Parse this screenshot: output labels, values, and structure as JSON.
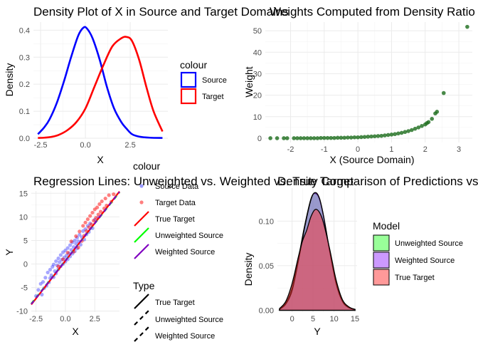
{
  "chart_data": [
    {
      "type": "line",
      "title": "Density Plot of X in Source and Target Domains",
      "xlabel": "X",
      "ylabel": "Density",
      "xlim": [
        -2.9,
        4.6
      ],
      "ylim": [
        0,
        0.43
      ],
      "xticks": [
        -2.5,
        0.0,
        2.5
      ],
      "xtick_labels": [
        "-2.5",
        "0.0",
        "2.5"
      ],
      "yticks": [
        0.0,
        0.1,
        0.2,
        0.3,
        0.4
      ],
      "ytick_labels": [
        "0.0",
        "0.1",
        "0.2",
        "0.3",
        "0.4"
      ],
      "grid": true,
      "legend": {
        "title": "colour",
        "position": "right",
        "entries": [
          "Source",
          "Target"
        ]
      },
      "series": [
        {
          "name": "Source",
          "color": "#0000ff",
          "x": [
            -2.65,
            -2.3,
            -2.0,
            -1.6,
            -1.2,
            -0.8,
            -0.4,
            -0.1,
            0.1,
            0.4,
            0.8,
            1.2,
            1.6,
            2.0,
            2.3,
            2.6,
            3.0,
            3.6,
            4.3
          ],
          "y": [
            0.015,
            0.04,
            0.07,
            0.13,
            0.21,
            0.3,
            0.38,
            0.41,
            0.405,
            0.37,
            0.29,
            0.19,
            0.11,
            0.06,
            0.035,
            0.015,
            0.006,
            0.002,
            0.001
          ]
        },
        {
          "name": "Target",
          "color": "#ff0000",
          "x": [
            -2.65,
            -2.3,
            -1.9,
            -1.5,
            -1.0,
            -0.5,
            0.0,
            0.5,
            1.0,
            1.5,
            2.0,
            2.3,
            2.6,
            3.0,
            3.4,
            3.8,
            4.3
          ],
          "y": [
            0.001,
            0.002,
            0.005,
            0.012,
            0.03,
            0.06,
            0.11,
            0.19,
            0.27,
            0.34,
            0.37,
            0.375,
            0.36,
            0.29,
            0.19,
            0.1,
            0.025
          ]
        }
      ]
    },
    {
      "type": "scatter",
      "title": "Weights Computed from Density Ratio",
      "xlabel": "X (Source Domain)",
      "ylabel": "Weight",
      "xlim": [
        -2.75,
        3.4
      ],
      "ylim": [
        -2,
        54
      ],
      "xticks": [
        -2,
        -1,
        0,
        1,
        2,
        3
      ],
      "xtick_labels": [
        "-2",
        "-1",
        "0",
        "1",
        "2",
        "3"
      ],
      "yticks": [
        0,
        10,
        20,
        30,
        40,
        50
      ],
      "ytick_labels": [
        "0",
        "10",
        "20",
        "30",
        "40",
        "50"
      ],
      "grid": true,
      "point_color": "#1a6b1a",
      "points": [
        [
          -2.6,
          0.0
        ],
        [
          -2.4,
          0.0
        ],
        [
          -2.2,
          0.0
        ],
        [
          -2.1,
          0.0
        ],
        [
          -1.9,
          0.0
        ],
        [
          -1.8,
          0.0
        ],
        [
          -1.7,
          0.0
        ],
        [
          -1.6,
          0.0
        ],
        [
          -1.5,
          0.0
        ],
        [
          -1.4,
          0.0
        ],
        [
          -1.3,
          0.0
        ],
        [
          -1.2,
          0.0
        ],
        [
          -1.1,
          0.1
        ],
        [
          -1.0,
          0.1
        ],
        [
          -0.9,
          0.1
        ],
        [
          -0.8,
          0.1
        ],
        [
          -0.7,
          0.1
        ],
        [
          -0.6,
          0.2
        ],
        [
          -0.5,
          0.2
        ],
        [
          -0.4,
          0.2
        ],
        [
          -0.3,
          0.3
        ],
        [
          -0.2,
          0.3
        ],
        [
          -0.1,
          0.4
        ],
        [
          0.0,
          0.4
        ],
        [
          0.1,
          0.5
        ],
        [
          0.2,
          0.6
        ],
        [
          0.3,
          0.7
        ],
        [
          0.4,
          0.8
        ],
        [
          0.5,
          0.9
        ],
        [
          0.6,
          1.0
        ],
        [
          0.7,
          1.1
        ],
        [
          0.8,
          1.3
        ],
        [
          0.9,
          1.5
        ],
        [
          1.0,
          1.7
        ],
        [
          1.1,
          1.9
        ],
        [
          1.2,
          2.2
        ],
        [
          1.3,
          2.5
        ],
        [
          1.4,
          2.9
        ],
        [
          1.5,
          3.3
        ],
        [
          1.6,
          3.8
        ],
        [
          1.7,
          4.4
        ],
        [
          1.8,
          5.0
        ],
        [
          1.9,
          5.7
        ],
        [
          2.0,
          6.4
        ],
        [
          2.05,
          7.0
        ],
        [
          2.1,
          7.5
        ],
        [
          2.2,
          9.0
        ],
        [
          2.3,
          11.5
        ],
        [
          2.35,
          12.3
        ],
        [
          2.55,
          21.0
        ],
        [
          3.25,
          51.8
        ]
      ]
    },
    {
      "type": "scatter",
      "title": "Regression Lines: Unweighted vs. Weighted vs. True Target",
      "xlabel": "X",
      "ylabel": "Y",
      "xlim": [
        -2.9,
        4.6
      ],
      "ylim": [
        -10.2,
        15.5
      ],
      "xticks": [
        -2.5,
        0.0,
        2.5
      ],
      "xtick_labels": [
        "-2.5",
        "0.0",
        "2.5"
      ],
      "yticks": [
        -10,
        -5,
        0,
        5,
        10,
        15
      ],
      "ytick_labels": [
        "-10",
        "-5",
        "0",
        "5",
        "10",
        "15"
      ],
      "grid": true,
      "legend_colour": {
        "title": "colour",
        "entries": [
          {
            "label": "Source Data",
            "kind": "point",
            "color": "#0000ff"
          },
          {
            "label": "Target Data",
            "kind": "point",
            "color": "#ff0000"
          },
          {
            "label": "True Target",
            "kind": "line",
            "color": "#ff0000"
          },
          {
            "label": "Unweighted Source",
            "kind": "line",
            "color": "#00ff00"
          },
          {
            "label": "Weighted Source",
            "kind": "line",
            "color": "#8000c0"
          }
        ]
      },
      "legend_type": {
        "title": "Type",
        "entries": [
          {
            "label": "True Target",
            "dash": "solid"
          },
          {
            "label": "Unweighted Source",
            "dash": "dashed"
          },
          {
            "label": "Weighted Source",
            "dash": "dashed"
          }
        ]
      },
      "source_points": [
        [
          -2.5,
          -6.8
        ],
        [
          -2.3,
          -5.5
        ],
        [
          -2.1,
          -4.2
        ],
        [
          -2.0,
          -6.5
        ],
        [
          -1.9,
          -3.8
        ],
        [
          -1.8,
          -5.1
        ],
        [
          -1.7,
          -2.9
        ],
        [
          -1.6,
          -4.6
        ],
        [
          -1.5,
          -1.8
        ],
        [
          -1.4,
          -3.9
        ],
        [
          -1.3,
          -1.2
        ],
        [
          -1.3,
          -3.0
        ],
        [
          -1.2,
          -2.4
        ],
        [
          -1.1,
          -0.6
        ],
        [
          -1.0,
          -2.8
        ],
        [
          -1.0,
          -0.1
        ],
        [
          -0.9,
          -1.5
        ],
        [
          -0.8,
          0.6
        ],
        [
          -0.8,
          -2.0
        ],
        [
          -0.7,
          -0.3
        ],
        [
          -0.6,
          1.2
        ],
        [
          -0.6,
          -1.1
        ],
        [
          -0.5,
          0.4
        ],
        [
          -0.4,
          1.9
        ],
        [
          -0.4,
          -0.5
        ],
        [
          -0.3,
          0.9
        ],
        [
          -0.2,
          2.5
        ],
        [
          -0.2,
          0.0
        ],
        [
          -0.1,
          1.4
        ],
        [
          0.0,
          2.9
        ],
        [
          0.0,
          0.5
        ],
        [
          0.1,
          1.8
        ],
        [
          0.2,
          3.4
        ],
        [
          0.2,
          1.0
        ],
        [
          0.3,
          2.3
        ],
        [
          0.4,
          4.0
        ],
        [
          0.4,
          1.6
        ],
        [
          0.5,
          3.0
        ],
        [
          0.6,
          4.6
        ],
        [
          0.6,
          2.2
        ],
        [
          0.7,
          3.6
        ],
        [
          0.8,
          5.0
        ],
        [
          0.8,
          2.7
        ],
        [
          0.9,
          4.3
        ],
        [
          1.0,
          5.6
        ],
        [
          1.0,
          3.3
        ],
        [
          1.1,
          4.8
        ],
        [
          1.2,
          6.2
        ],
        [
          1.3,
          4.1
        ],
        [
          1.4,
          5.7
        ],
        [
          1.5,
          7.0
        ],
        [
          1.6,
          5.2
        ],
        [
          1.7,
          7.4
        ],
        [
          1.8,
          6.3
        ],
        [
          1.9,
          8.1
        ],
        [
          2.0,
          6.8
        ],
        [
          2.1,
          8.6
        ],
        [
          2.3,
          7.6
        ],
        [
          2.5,
          9.4
        ],
        [
          2.8,
          9.9
        ]
      ],
      "target_points": [
        [
          -0.6,
          -0.5
        ],
        [
          -0.2,
          1.0
        ],
        [
          0.2,
          2.4
        ],
        [
          0.5,
          4.8
        ],
        [
          0.7,
          2.6
        ],
        [
          0.9,
          5.9
        ],
        [
          1.1,
          3.5
        ],
        [
          1.2,
          6.9
        ],
        [
          1.4,
          4.9
        ],
        [
          1.5,
          8.1
        ],
        [
          1.6,
          6.0
        ],
        [
          1.7,
          8.8
        ],
        [
          1.8,
          7.0
        ],
        [
          1.9,
          9.5
        ],
        [
          2.0,
          7.8
        ],
        [
          2.1,
          10.2
        ],
        [
          2.2,
          8.4
        ],
        [
          2.3,
          10.9
        ],
        [
          2.4,
          9.2
        ],
        [
          2.5,
          11.6
        ],
        [
          2.6,
          9.8
        ],
        [
          2.7,
          12.0
        ],
        [
          2.8,
          10.5
        ],
        [
          2.9,
          12.7
        ],
        [
          3.0,
          11.1
        ],
        [
          3.1,
          13.3
        ],
        [
          3.3,
          11.8
        ],
        [
          3.4,
          13.9
        ],
        [
          3.5,
          12.4
        ],
        [
          3.7,
          14.6
        ],
        [
          3.9,
          13.2
        ],
        [
          4.1,
          14.8
        ]
      ],
      "lines": [
        {
          "name": "True Target",
          "color": "#ff0000",
          "dash": "solid",
          "x": [
            -2.9,
            4.6
          ],
          "y": [
            -8.6,
            15.4
          ]
        },
        {
          "name": "Unweighted Source",
          "color": "#00ff00",
          "dash": "dashed",
          "x": [
            -2.9,
            4.6
          ],
          "y": [
            -8.4,
            15.2
          ]
        },
        {
          "name": "Weighted Source",
          "color": "#8000c0",
          "dash": "dashed",
          "x": [
            -2.9,
            4.6
          ],
          "y": [
            -8.5,
            15.3
          ]
        }
      ]
    },
    {
      "type": "area",
      "title": "Density Comparison of Predictions vs. True Target",
      "xlabel": "Y",
      "ylabel": "Density",
      "xlim": [
        -3.5,
        15.5
      ],
      "ylim": [
        -0.002,
        0.137
      ],
      "xticks": [
        0,
        5,
        10,
        15
      ],
      "xtick_labels": [
        "0",
        "5",
        "10",
        "15"
      ],
      "yticks": [
        0.0,
        0.05,
        0.1
      ],
      "ytick_labels": [
        "0.00",
        "0.05",
        "0.10"
      ],
      "grid": true,
      "legend": {
        "title": "Model",
        "entries": [
          {
            "label": "Unweighted Source",
            "color": "#33ff33"
          },
          {
            "label": "Weighted Source",
            "color": "#9933ff"
          },
          {
            "label": "True Target",
            "color": "#ff3333"
          }
        ]
      },
      "series": [
        {
          "name": "Unweighted Source",
          "color": "#33ff33",
          "x": [
            -3,
            -1.5,
            0,
            1.5,
            3,
            4.5,
            5.5,
            6.5,
            7.5,
            9,
            10.5,
            12,
            13.5,
            15
          ],
          "y": [
            0.001,
            0.008,
            0.025,
            0.058,
            0.095,
            0.125,
            0.131,
            0.125,
            0.105,
            0.065,
            0.03,
            0.01,
            0.003,
            0.001
          ]
        },
        {
          "name": "Weighted Source",
          "color": "#9933ff",
          "x": [
            -3,
            -1.5,
            0,
            1.5,
            3,
            4.5,
            5.5,
            6.5,
            7.5,
            9,
            10.5,
            12,
            13.5,
            15
          ],
          "y": [
            0.001,
            0.007,
            0.022,
            0.055,
            0.093,
            0.124,
            0.132,
            0.126,
            0.106,
            0.066,
            0.03,
            0.01,
            0.003,
            0.001
          ]
        },
        {
          "name": "True Target",
          "color": "#ff3333",
          "x": [
            -3,
            -1.5,
            0,
            1.5,
            2.5,
            3.5,
            4.5,
            5.5,
            6.5,
            7.5,
            9,
            10.5,
            12,
            13.5,
            15
          ],
          "y": [
            0.002,
            0.01,
            0.03,
            0.06,
            0.078,
            0.09,
            0.105,
            0.113,
            0.11,
            0.098,
            0.068,
            0.034,
            0.012,
            0.004,
            0.001
          ]
        }
      ]
    }
  ]
}
